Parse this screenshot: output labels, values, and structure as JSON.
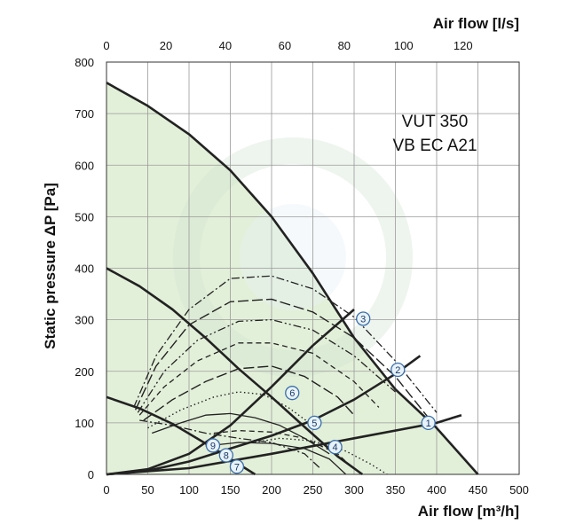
{
  "chart_data": {
    "type": "line",
    "title_lines": [
      "VUT 350",
      "VB EC A21"
    ],
    "xlabel": "Air flow [m³/h]",
    "ylabel": "Static pressure ΔP [Pa]",
    "x2label": "Air flow [l/s]",
    "xlim": [
      0,
      500
    ],
    "ylim": [
      0,
      800
    ],
    "x2lim": [
      0,
      138.9
    ],
    "xticks": [
      "0",
      "50",
      "100",
      "150",
      "200",
      "250",
      "300",
      "350",
      "400",
      "450",
      "500"
    ],
    "yticks": [
      "0",
      "100",
      "200",
      "300",
      "400",
      "500",
      "600",
      "700",
      "800"
    ],
    "x2ticks": [
      "0",
      "20",
      "40",
      "60",
      "80",
      "100",
      "120"
    ],
    "grid": true,
    "fill_color": "#dceccf",
    "series": [
      {
        "style": "solid-thick",
        "x": [
          0,
          50,
          100,
          150,
          200,
          250,
          300,
          350,
          400,
          450
        ],
        "y": [
          760,
          715,
          660,
          590,
          500,
          390,
          265,
          165,
          90,
          0
        ]
      },
      {
        "style": "solid-thick",
        "x": [
          0,
          40,
          80,
          120,
          160,
          200,
          240,
          280,
          310
        ],
        "y": [
          400,
          365,
          320,
          265,
          205,
          150,
          92,
          35,
          0
        ]
      },
      {
        "style": "solid-thick",
        "x": [
          0,
          40,
          80,
          120,
          160,
          180
        ],
        "y": [
          150,
          128,
          98,
          60,
          20,
          0
        ]
      },
      {
        "style": "dash-dot",
        "x": [
          33,
          60,
          100,
          150,
          200,
          250,
          300,
          350,
          400
        ],
        "y": [
          130,
          230,
          320,
          380,
          385,
          360,
          305,
          220,
          120
        ]
      },
      {
        "style": "long-dash",
        "x": [
          35,
          60,
          100,
          150,
          200,
          250,
          300,
          350,
          390
        ],
        "y": [
          125,
          210,
          290,
          335,
          340,
          315,
          265,
          190,
          110
        ]
      },
      {
        "style": "dash-dot-dot",
        "x": [
          38,
          70,
          110,
          160,
          200,
          250,
          300,
          350
        ],
        "y": [
          120,
          200,
          260,
          297,
          300,
          280,
          230,
          160
        ]
      },
      {
        "style": "dash",
        "x": [
          40,
          70,
          110,
          160,
          200,
          250,
          300,
          330
        ],
        "y": [
          115,
          170,
          220,
          255,
          255,
          235,
          180,
          130
        ]
      },
      {
        "style": "long-dash",
        "x": [
          45,
          80,
          120,
          160,
          200,
          240,
          280,
          300
        ],
        "y": [
          105,
          145,
          180,
          205,
          210,
          190,
          150,
          115
        ]
      },
      {
        "style": "dot",
        "x": [
          50,
          90,
          130,
          160,
          190,
          220,
          250
        ],
        "y": [
          90,
          125,
          150,
          160,
          155,
          130,
          95
        ]
      },
      {
        "style": "solid-thin",
        "x": [
          55,
          90,
          120,
          150,
          180,
          210,
          240,
          270
        ],
        "y": [
          80,
          100,
          115,
          118,
          110,
          95,
          70,
          40
        ]
      },
      {
        "style": "dash-dot",
        "x": [
          40,
          80,
          120,
          160,
          200,
          240,
          260
        ],
        "y": [
          105,
          95,
          80,
          70,
          62,
          40,
          10
        ]
      },
      {
        "style": "dash",
        "x": [
          130,
          160,
          200,
          240,
          280,
          300
        ],
        "y": [
          80,
          85,
          82,
          70,
          40,
          10
        ]
      },
      {
        "style": "dot",
        "x": [
          170,
          210,
          250,
          290,
          320,
          340
        ],
        "y": [
          60,
          70,
          65,
          45,
          20,
          0
        ]
      },
      {
        "style": "solid-thin",
        "x": [
          120,
          160,
          200,
          240,
          270,
          290
        ],
        "y": [
          55,
          62,
          60,
          50,
          30,
          0
        ]
      },
      {
        "style": "system",
        "x": [
          0,
          50,
          100,
          150,
          200,
          250,
          300
        ],
        "y": [
          0,
          10,
          40,
          95,
          170,
          250,
          320
        ]
      },
      {
        "style": "system",
        "x": [
          0,
          50,
          100,
          150,
          200,
          250,
          300,
          350,
          380
        ],
        "y": [
          0,
          7,
          25,
          50,
          75,
          105,
          145,
          195,
          230
        ]
      },
      {
        "style": "system",
        "x": [
          0,
          100,
          200,
          300,
          400,
          430
        ],
        "y": [
          0,
          12,
          40,
          70,
          100,
          115
        ]
      }
    ],
    "operating_points": [
      {
        "label": "1",
        "x": 390,
        "y": 100
      },
      {
        "label": "2",
        "x": 353,
        "y": 203
      },
      {
        "label": "3",
        "x": 311,
        "y": 302
      },
      {
        "label": "4",
        "x": 277,
        "y": 53
      },
      {
        "label": "5",
        "x": 252,
        "y": 100
      },
      {
        "label": "6",
        "x": 225,
        "y": 158
      },
      {
        "label": "7",
        "x": 158,
        "y": 15
      },
      {
        "label": "8",
        "x": 145,
        "y": 37
      },
      {
        "label": "9",
        "x": 129,
        "y": 56
      }
    ]
  }
}
